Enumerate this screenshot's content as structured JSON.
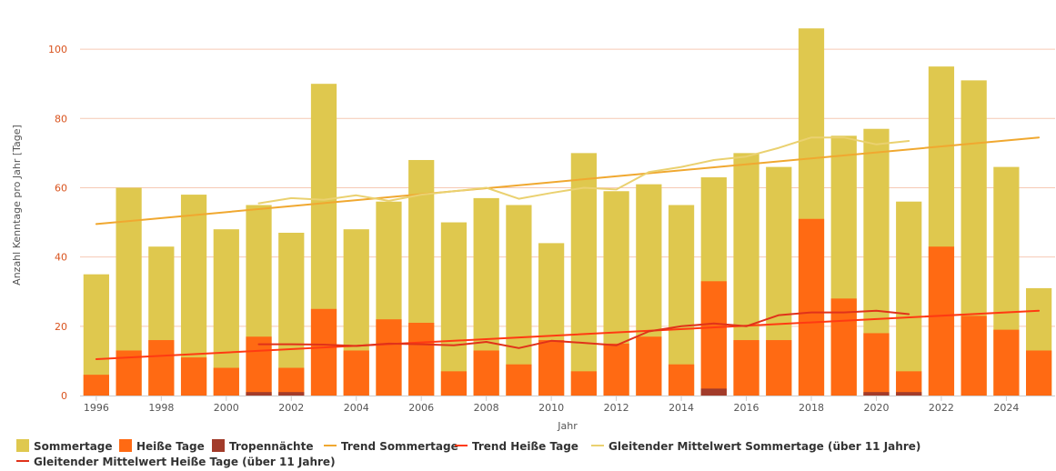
{
  "chart_data": {
    "type": "bar",
    "stacked": true,
    "xlabel": "Jahr",
    "ylabel": "Anzahl Kenntage pro Jahr [Tage]",
    "ylim": [
      0,
      110
    ],
    "yticks": [
      0,
      20,
      40,
      60,
      80,
      100
    ],
    "xticks": [
      1996,
      1998,
      2000,
      2002,
      2004,
      2006,
      2008,
      2010,
      2012,
      2014,
      2016,
      2018,
      2020,
      2022,
      2024
    ],
    "grid": true,
    "legend_position": "bottom-left",
    "categories": [
      1996,
      1997,
      1998,
      1999,
      2000,
      2001,
      2002,
      2003,
      2004,
      2005,
      2006,
      2007,
      2008,
      2009,
      2010,
      2011,
      2012,
      2013,
      2014,
      2015,
      2016,
      2017,
      2018,
      2019,
      2020,
      2021,
      2022,
      2023,
      2024,
      2025
    ],
    "bar_series": [
      {
        "name": "Sommertage",
        "color": "#dfc84e",
        "values": [
          35,
          60,
          43,
          58,
          48,
          55,
          47,
          90,
          48,
          56,
          68,
          50,
          57,
          55,
          44,
          70,
          59,
          61,
          55,
          63,
          70,
          66,
          106,
          75,
          77,
          56,
          95,
          91,
          66,
          31
        ]
      },
      {
        "name": "Heiße Tage",
        "color": "#ff6a13",
        "values": [
          6,
          13,
          16,
          11,
          8,
          17,
          8,
          25,
          13,
          22,
          21,
          7,
          13,
          9,
          16,
          7,
          15,
          17,
          9,
          33,
          16,
          16,
          51,
          28,
          18,
          7,
          43,
          23,
          19,
          13
        ]
      },
      {
        "name": "Tropennächte",
        "color": "#a23b2a",
        "values": [
          0,
          0,
          0,
          0,
          0,
          1,
          1,
          0,
          0,
          0,
          0,
          0,
          0,
          0,
          0,
          0,
          0,
          0,
          0,
          2,
          0,
          0,
          0,
          0,
          1,
          1,
          0,
          0,
          0,
          0
        ]
      }
    ],
    "line_series": [
      {
        "name": "Trend Sommertage",
        "color": "#f0a830",
        "width": 2,
        "x": [
          1996,
          2025
        ],
        "values": [
          49.5,
          74.5
        ]
      },
      {
        "name": "Trend Heiße Tage",
        "color": "#ff3a12",
        "width": 2,
        "x": [
          1996,
          2025
        ],
        "values": [
          10.5,
          24.5
        ]
      },
      {
        "name": "Gleitender Mittelwert Sommertage (über 11 Jahre)",
        "color": "#ead170",
        "width": 2,
        "x": [
          2001,
          2002,
          2003,
          2004,
          2005,
          2006,
          2007,
          2008,
          2009,
          2010,
          2011,
          2012,
          2013,
          2014,
          2015,
          2016,
          2017,
          2018,
          2019,
          2020,
          2021
        ],
        "values": [
          55.5,
          57,
          56.5,
          57.8,
          56.2,
          58,
          59,
          60,
          56.8,
          58.5,
          60,
          59.5,
          64.5,
          66,
          68,
          69,
          71.5,
          74.5,
          74.5,
          72.5,
          73.5
        ]
      },
      {
        "name": "Gleitender Mittelwert Heiße Tage (über 11 Jahre)",
        "color": "#e0321a",
        "width": 2,
        "x": [
          2001,
          2002,
          2003,
          2004,
          2005,
          2006,
          2007,
          2008,
          2009,
          2010,
          2011,
          2012,
          2013,
          2014,
          2015,
          2016,
          2017,
          2018,
          2019,
          2020,
          2021
        ],
        "values": [
          14.8,
          14.8,
          14.7,
          14.3,
          15,
          14.8,
          14.5,
          15.5,
          13.7,
          15.8,
          15.2,
          14.5,
          18.5,
          20,
          20.8,
          20,
          23.2,
          24,
          24,
          24.5,
          23.5
        ]
      }
    ],
    "legend": [
      {
        "label": "Sommertage",
        "symbol": "box",
        "color": "#dfc84e"
      },
      {
        "label": "Heiße Tage",
        "symbol": "box",
        "color": "#ff6a13"
      },
      {
        "label": "Tropennächte",
        "symbol": "box",
        "color": "#a23b2a"
      },
      {
        "label": "Trend Sommertage",
        "symbol": "line",
        "color": "#f0a830"
      },
      {
        "label": "Trend Heiße Tage",
        "symbol": "line",
        "color": "#ff3a12"
      },
      {
        "label": "Gleitender Mittelwert Sommertage (über 11 Jahre)",
        "symbol": "line",
        "color": "#ead170"
      },
      {
        "label": "Gleitender Mittelwert Heiße Tage (über 11 Jahre)",
        "symbol": "line",
        "color": "#e0321a"
      }
    ]
  }
}
